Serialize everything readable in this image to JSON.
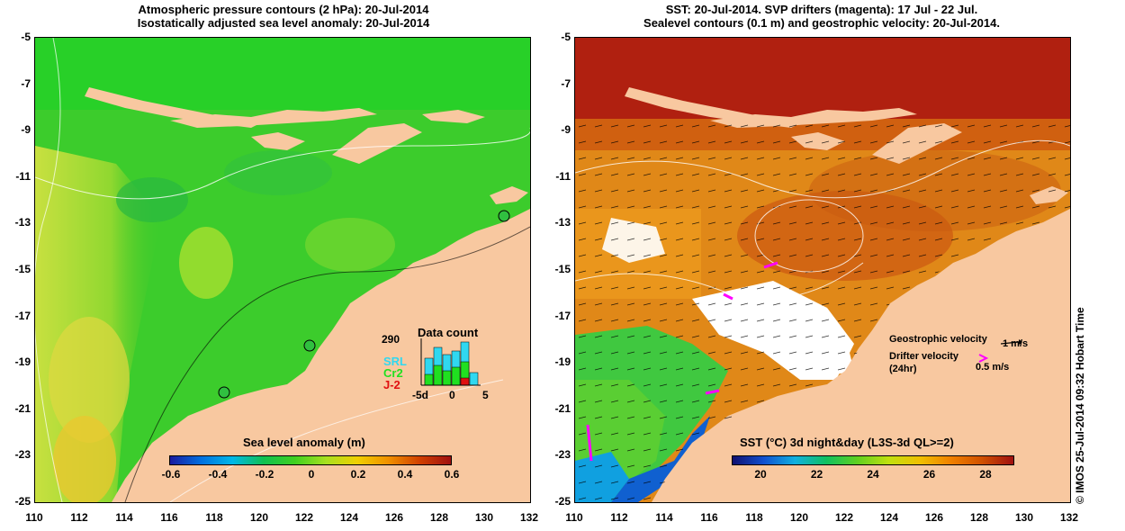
{
  "left_panel": {
    "title_line1": "Atmospheric pressure contours (2 hPa): 20-Jul-2014",
    "title_line2": "Isostatically adjusted sea level anomaly: 20-Jul-2014",
    "colorbar": {
      "title": "Sea level anomaly (m)",
      "ticks": [
        "-0.6",
        "-0.4",
        "-0.2",
        "0",
        "0.2",
        "0.4",
        "0.6"
      ],
      "colors": [
        "#1a1aa0",
        "#0070e0",
        "#00b8e8",
        "#10c050",
        "#40d020",
        "#a8e020",
        "#f0d000",
        "#f09000",
        "#d04000",
        "#a01010"
      ]
    },
    "inset": {
      "title": "Data count",
      "ymax": "290",
      "legend": [
        {
          "label": "SRL",
          "color": "#30d8f0"
        },
        {
          "label": "Cr2",
          "color": "#20e020"
        },
        {
          "label": "J-2",
          "color": "#e01010"
        }
      ],
      "x_ticks": [
        "-5d",
        "0",
        "5"
      ]
    }
  },
  "right_panel": {
    "title_line1": "SST: 20-Jul-2014. SVP drifters (magenta): 17 Jul - 22 Jul.",
    "title_line2": "Sealevel contours (0.1 m) and geostrophic velocity: 20-Jul-2014.",
    "colorbar": {
      "title": "SST (°C) 3d night&day (L3S-3d QL>=2)",
      "ticks": [
        "20",
        "22",
        "24",
        "26",
        "28"
      ],
      "colors": [
        "#101070",
        "#1050d0",
        "#10b0e0",
        "#10c060",
        "#60d020",
        "#c0e010",
        "#f0c000",
        "#f08000",
        "#d05000",
        "#a01010"
      ]
    },
    "legend": {
      "geostrophic_label": "Geostrophic velocity",
      "geostrophic_value": "1 m/s",
      "drifter_label": "Drifter velocity",
      "drifter_sub": "(24hr)",
      "drifter_value": "0.5 m/s"
    }
  },
  "axes": {
    "y_ticks": [
      "-5",
      "-7",
      "-9",
      "-11",
      "-13",
      "-15",
      "-17",
      "-19",
      "-21",
      "-23",
      "-25"
    ],
    "x_ticks": [
      "110",
      "112",
      "114",
      "116",
      "118",
      "120",
      "122",
      "124",
      "126",
      "128",
      "130",
      "132"
    ]
  },
  "credit": "© IMOS 25-Jul-2014 09:32 Hobart Time",
  "colors": {
    "land": "#f8c8a0",
    "sla_green": "#20d020",
    "sst_orange": "#e08010",
    "sst_red": "#b02010",
    "drifter": "#ff00ff"
  }
}
